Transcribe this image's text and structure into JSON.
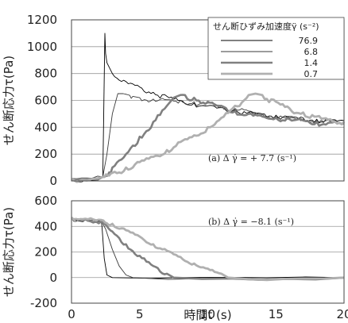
{
  "chart_data": [
    {
      "type": "line",
      "ylabel": "せん断応力τ(Pa)",
      "xlim": [
        0,
        20
      ],
      "ylim": [
        0,
        1200
      ],
      "yticks": [
        0,
        200,
        400,
        600,
        800,
        1000,
        1200
      ],
      "grid": "horizontal",
      "legend": {
        "title": "せん断ひずみ加速度γ̈ (s⁻²)",
        "placement": "top-right"
      },
      "annotation": "(a)   Δ γ̇ = + 7.7 (s⁻¹)",
      "series": [
        {
          "name": "76.9",
          "color": "#000000",
          "x": [
            0,
            2.3,
            2.45,
            2.5,
            2.6,
            3,
            4,
            5,
            6,
            7,
            8,
            9,
            10,
            11,
            12,
            13,
            14,
            15,
            16,
            17,
            18,
            19,
            20
          ],
          "y": [
            15,
            30,
            1100,
            950,
            880,
            800,
            740,
            700,
            660,
            630,
            600,
            580,
            560,
            545,
            530,
            510,
            500,
            490,
            480,
            470,
            460,
            455,
            450
          ]
        },
        {
          "name": "6.8",
          "color": "#3a3a3a",
          "x": [
            0,
            2.3,
            2.6,
            3.0,
            3.4,
            3.8,
            4.5,
            5,
            6,
            7,
            8,
            9,
            10,
            11,
            12,
            13,
            14,
            15,
            16,
            17,
            18,
            19,
            20
          ],
          "y": [
            15,
            30,
            200,
            500,
            650,
            650,
            630,
            620,
            610,
            605,
            600,
            590,
            580,
            560,
            540,
            520,
            500,
            480,
            470,
            460,
            450,
            445,
            440
          ]
        },
        {
          "name": "1.4",
          "color": "#808080",
          "x": [
            0,
            2.3,
            3,
            4,
            5,
            6,
            7,
            7.5,
            8,
            9,
            10,
            11,
            12,
            13,
            14,
            15,
            16,
            17,
            18,
            19,
            20
          ],
          "y": [
            15,
            30,
            100,
            200,
            330,
            440,
            560,
            620,
            640,
            620,
            590,
            560,
            520,
            500,
            480,
            470,
            460,
            450,
            440,
            435,
            430
          ]
        },
        {
          "name": "0.7",
          "color": "#b0b0b0",
          "x": [
            0,
            2.3,
            3,
            4,
            5,
            6,
            7,
            8,
            9,
            10,
            11,
            12,
            13,
            13.5,
            14,
            15,
            16,
            17,
            18,
            19,
            20
          ],
          "y": [
            15,
            30,
            60,
            100,
            140,
            180,
            230,
            290,
            340,
            400,
            470,
            560,
            640,
            650,
            640,
            590,
            540,
            510,
            480,
            460,
            440
          ]
        }
      ]
    },
    {
      "type": "line",
      "xlabel": "時間t (s)",
      "ylabel": "せん断応力τ(Pa)",
      "xlim": [
        0,
        20
      ],
      "ylim": [
        -200,
        600
      ],
      "xticks": [
        0,
        5,
        10,
        15,
        20
      ],
      "yticks": [
        -200,
        0,
        200,
        400,
        600
      ],
      "grid": "horizontal",
      "annotation": "(b)   Δ γ̇ = −8.1 (s⁻¹)",
      "series": [
        {
          "name": "76.9",
          "color": "#000000",
          "x": [
            0,
            1,
            2.2,
            2.25,
            2.4,
            2.6,
            3,
            20
          ],
          "y": [
            460,
            450,
            440,
            380,
            150,
            20,
            0,
            0
          ]
        },
        {
          "name": "6.8",
          "color": "#3a3a3a",
          "x": [
            0,
            1,
            2.2,
            2.5,
            3,
            3.5,
            4,
            4.5,
            20
          ],
          "y": [
            460,
            450,
            440,
            380,
            220,
            90,
            20,
            0,
            0
          ]
        },
        {
          "name": "1.4",
          "color": "#808080",
          "x": [
            0,
            1,
            2.2,
            3,
            4,
            5,
            6,
            7,
            7.5,
            20
          ],
          "y": [
            460,
            455,
            440,
            360,
            260,
            170,
            90,
            30,
            0,
            0
          ]
        },
        {
          "name": "0.7",
          "color": "#b0b0b0",
          "x": [
            0,
            1,
            2.2,
            3,
            4,
            5,
            6,
            7,
            8,
            9,
            10,
            11,
            11.5,
            20
          ],
          "y": [
            470,
            460,
            450,
            420,
            370,
            320,
            260,
            210,
            160,
            110,
            70,
            30,
            0,
            0
          ]
        }
      ]
    }
  ]
}
